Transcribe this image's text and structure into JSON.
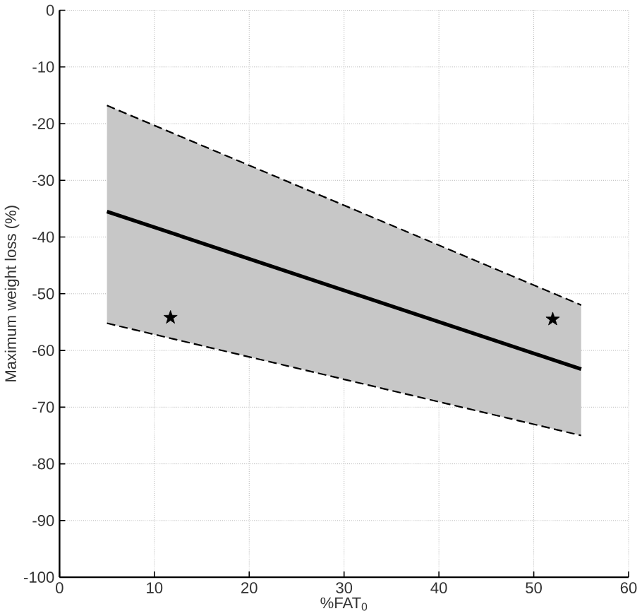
{
  "chart_data": {
    "type": "line",
    "xlabel": "%FAT$_{0}$",
    "ylabel": "Maximum weight loss (%)",
    "xlim": [
      0,
      60
    ],
    "ylim": [
      -100,
      0
    ],
    "xticks": [
      0,
      10,
      20,
      30,
      40,
      50,
      60
    ],
    "yticks": [
      -100,
      -90,
      -80,
      -70,
      -60,
      -50,
      -40,
      -30,
      -20,
      -10,
      0
    ],
    "grid": true,
    "series": [
      {
        "color": "#000000",
        "x": [
          5,
          55
        ],
        "values": [
          -35.5,
          -63.3
        ],
        "lower": [
          -55.2,
          -75
        ],
        "upper": [
          -16.8,
          -52
        ],
        "line_style": "solid"
      },
      {
        "color": "#000000",
        "x": [
          5,
          55
        ],
        "values": [
          -16.8,
          -52
        ],
        "line_style": "dashed"
      },
      {
        "color": "#000000",
        "x": [
          5,
          55
        ],
        "values": [
          -55.2,
          -75
        ],
        "line_style": "dashed"
      },
      {
        "type": "scatter",
        "color": "#000000",
        "x": [
          11.7,
          52
        ],
        "values": [
          -54.2,
          -54.5
        ],
        "marker": "star"
      }
    ]
  }
}
